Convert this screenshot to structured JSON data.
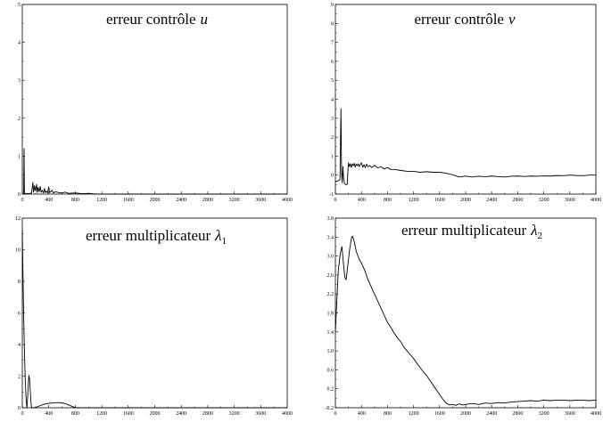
{
  "chart_data": [
    {
      "type": "line",
      "title": {
        "text": "erreur contrôle",
        "var": "u"
      },
      "xlim": [
        0,
        4000
      ],
      "ylim": [
        0,
        5
      ],
      "xticks": [
        "0",
        "400",
        "800",
        "1200",
        "1600",
        "2000",
        "2400",
        "2800",
        "3200",
        "3600",
        "4000"
      ],
      "yticks": [
        "0",
        "1",
        "2",
        "3",
        "4",
        "5"
      ],
      "grid": false,
      "series": [
        {
          "color": "#000000",
          "points": [
            [
              0,
              0
            ],
            [
              20,
              0
            ],
            [
              27,
              1.2
            ],
            [
              32,
              0
            ],
            [
              60,
              0.02
            ],
            [
              100,
              0.01
            ],
            [
              140,
              0.03
            ],
            [
              160,
              0.31
            ],
            [
              170,
              0.05
            ],
            [
              185,
              0.22
            ],
            [
              200,
              0.08
            ],
            [
              215,
              0.26
            ],
            [
              225,
              0.04
            ],
            [
              240,
              0.18
            ],
            [
              255,
              0.06
            ],
            [
              270,
              0.2
            ],
            [
              285,
              0.05
            ],
            [
              300,
              0.1
            ],
            [
              320,
              0.03
            ],
            [
              335,
              0.15
            ],
            [
              345,
              0.04
            ],
            [
              360,
              0.08
            ],
            [
              380,
              0.03
            ],
            [
              400,
              0.19
            ],
            [
              410,
              0.04
            ],
            [
              430,
              0.06
            ],
            [
              450,
              0.1
            ],
            [
              470,
              0.03
            ],
            [
              500,
              0.06
            ],
            [
              550,
              0.04
            ],
            [
              600,
              0.03
            ],
            [
              650,
              0.05
            ],
            [
              700,
              0.02
            ],
            [
              800,
              0.03
            ],
            [
              900,
              0.01
            ],
            [
              1000,
              0.02
            ],
            [
              1100,
              0
            ],
            [
              4000,
              0
            ]
          ]
        }
      ]
    },
    {
      "type": "line",
      "title": {
        "text": "erreur contrôle",
        "var": "v"
      },
      "xlim": [
        0,
        4000
      ],
      "ylim": [
        -1,
        9
      ],
      "xticks": [
        "0",
        "400",
        "800",
        "1200",
        "1600",
        "2000",
        "2400",
        "2800",
        "3200",
        "3600",
        "4000"
      ],
      "yticks": [
        "-1",
        "0",
        "1",
        "2",
        "3",
        "4",
        "5",
        "6",
        "7",
        "8",
        "9"
      ],
      "grid": false,
      "series": [
        {
          "color": "#000000",
          "points": [
            [
              0,
              -0.35
            ],
            [
              40,
              -0.3
            ],
            [
              70,
              -0.25
            ],
            [
              85,
              3.5
            ],
            [
              95,
              0.1
            ],
            [
              105,
              -0.4
            ],
            [
              115,
              0.45
            ],
            [
              125,
              -0.1
            ],
            [
              140,
              -0.45
            ],
            [
              160,
              -0.5
            ],
            [
              180,
              -0.5
            ],
            [
              200,
              0.65
            ],
            [
              215,
              0.45
            ],
            [
              230,
              0.6
            ],
            [
              245,
              0.4
            ],
            [
              260,
              0.6
            ],
            [
              275,
              0.5
            ],
            [
              290,
              0.62
            ],
            [
              305,
              0.42
            ],
            [
              320,
              0.58
            ],
            [
              335,
              0.5
            ],
            [
              350,
              0.6
            ],
            [
              365,
              0.45
            ],
            [
              380,
              0.55
            ],
            [
              400,
              0.65
            ],
            [
              420,
              0.42
            ],
            [
              440,
              0.55
            ],
            [
              460,
              0.4
            ],
            [
              480,
              0.58
            ],
            [
              500,
              0.45
            ],
            [
              530,
              0.5
            ],
            [
              560,
              0.4
            ],
            [
              600,
              0.52
            ],
            [
              650,
              0.38
            ],
            [
              700,
              0.45
            ],
            [
              750,
              0.32
            ],
            [
              800,
              0.4
            ],
            [
              850,
              0.3
            ],
            [
              900,
              0.3
            ],
            [
              1000,
              0.25
            ],
            [
              1100,
              0.2
            ],
            [
              1200,
              0.2
            ],
            [
              1300,
              0.15
            ],
            [
              1400,
              0.18
            ],
            [
              1500,
              0.15
            ],
            [
              1600,
              0.15
            ],
            [
              1700,
              0.1
            ],
            [
              1800,
              0.02
            ],
            [
              1900,
              -0.1
            ],
            [
              2000,
              -0.05
            ],
            [
              2100,
              -0.1
            ],
            [
              2200,
              -0.06
            ],
            [
              2300,
              -0.08
            ],
            [
              2400,
              -0.05
            ],
            [
              2500,
              -0.08
            ],
            [
              2600,
              -0.1
            ],
            [
              2700,
              -0.06
            ],
            [
              2800,
              -0.05
            ],
            [
              2900,
              -0.07
            ],
            [
              3000,
              -0.05
            ],
            [
              3100,
              -0.06
            ],
            [
              3200,
              -0.04
            ],
            [
              3300,
              -0.05
            ],
            [
              3400,
              -0.02
            ],
            [
              3500,
              -0.03
            ],
            [
              3600,
              0
            ],
            [
              3700,
              -0.02
            ],
            [
              3800,
              -0.03
            ],
            [
              3900,
              0
            ],
            [
              4000,
              0
            ]
          ]
        }
      ]
    },
    {
      "type": "line",
      "title": {
        "text": "erreur multiplicateur",
        "var": "λ",
        "sub": "1"
      },
      "xlim": [
        0,
        4000
      ],
      "ylim": [
        0,
        12
      ],
      "xticks": [
        "0",
        "400",
        "800",
        "1200",
        "1600",
        "2000",
        "2400",
        "2800",
        "3200",
        "3600",
        "4000"
      ],
      "yticks": [
        "0",
        "2",
        "4",
        "6",
        "8",
        "10",
        "12"
      ],
      "grid": false,
      "series": [
        {
          "color": "#000000",
          "points": [
            [
              0,
              11.2
            ],
            [
              10,
              8.5
            ],
            [
              20,
              6
            ],
            [
              30,
              4
            ],
            [
              40,
              2.4
            ],
            [
              50,
              1.2
            ],
            [
              60,
              0.4
            ],
            [
              70,
              0
            ],
            [
              80,
              0.6
            ],
            [
              90,
              1.5
            ],
            [
              100,
              2.05
            ],
            [
              110,
              1.8
            ],
            [
              120,
              1.1
            ],
            [
              130,
              0.4
            ],
            [
              140,
              0
            ],
            [
              180,
              0
            ],
            [
              220,
              0.05
            ],
            [
              260,
              0.12
            ],
            [
              300,
              0.18
            ],
            [
              350,
              0.24
            ],
            [
              400,
              0.28
            ],
            [
              450,
              0.3
            ],
            [
              500,
              0.32
            ],
            [
              550,
              0.33
            ],
            [
              600,
              0.31
            ],
            [
              650,
              0.26
            ],
            [
              700,
              0.18
            ],
            [
              750,
              0.09
            ],
            [
              800,
              0.02
            ],
            [
              850,
              0
            ],
            [
              4000,
              0
            ]
          ]
        }
      ]
    },
    {
      "type": "line",
      "title": {
        "text": "erreur multiplicateur",
        "var": "λ",
        "sub": "2"
      },
      "xlim": [
        0,
        4000
      ],
      "ylim": [
        -0.2,
        3.8
      ],
      "xticks": [
        "0",
        "400",
        "800",
        "1200",
        "1600",
        "2000",
        "2400",
        "2800",
        "3200",
        "3600",
        "4000"
      ],
      "yticks": [
        "-0.2",
        "0.2",
        "0.6",
        "1.0",
        "1.4",
        "1.8",
        "2.2",
        "2.6",
        "3.0",
        "3.4",
        "3.8"
      ],
      "grid": false,
      "series": [
        {
          "color": "#000000",
          "points": [
            [
              0,
              1.4
            ],
            [
              20,
              2.0
            ],
            [
              45,
              2.7
            ],
            [
              75,
              3.05
            ],
            [
              100,
              3.2
            ],
            [
              120,
              2.9
            ],
            [
              145,
              2.55
            ],
            [
              165,
              2.5
            ],
            [
              190,
              2.8
            ],
            [
              220,
              3.15
            ],
            [
              250,
              3.4
            ],
            [
              265,
              3.42
            ],
            [
              290,
              3.3
            ],
            [
              320,
              3.1
            ],
            [
              360,
              2.95
            ],
            [
              400,
              2.85
            ],
            [
              450,
              2.7
            ],
            [
              500,
              2.5
            ],
            [
              550,
              2.35
            ],
            [
              600,
              2.2
            ],
            [
              650,
              2.05
            ],
            [
              700,
              1.9
            ],
            [
              750,
              1.75
            ],
            [
              800,
              1.6
            ],
            [
              850,
              1.5
            ],
            [
              900,
              1.38
            ],
            [
              950,
              1.28
            ],
            [
              1000,
              1.2
            ],
            [
              1050,
              1.08
            ],
            [
              1100,
              1.0
            ],
            [
              1150,
              0.92
            ],
            [
              1200,
              0.84
            ],
            [
              1250,
              0.74
            ],
            [
              1300,
              0.65
            ],
            [
              1350,
              0.56
            ],
            [
              1400,
              0.48
            ],
            [
              1450,
              0.38
            ],
            [
              1500,
              0.28
            ],
            [
              1550,
              0.18
            ],
            [
              1600,
              0.08
            ],
            [
              1650,
              -0.02
            ],
            [
              1700,
              -0.1
            ],
            [
              1750,
              -0.14
            ],
            [
              1800,
              -0.13
            ],
            [
              1850,
              -0.15
            ],
            [
              1900,
              -0.12
            ],
            [
              1950,
              -0.14
            ],
            [
              2000,
              -0.13
            ],
            [
              2100,
              -0.11
            ],
            [
              2200,
              -0.13
            ],
            [
              2300,
              -0.1
            ],
            [
              2400,
              -0.11
            ],
            [
              2500,
              -0.09
            ],
            [
              2600,
              -0.1
            ],
            [
              2700,
              -0.08
            ],
            [
              2800,
              -0.07
            ],
            [
              2900,
              -0.06
            ],
            [
              3000,
              -0.05
            ],
            [
              3100,
              -0.06
            ],
            [
              3200,
              -0.04
            ],
            [
              3300,
              -0.05
            ],
            [
              3400,
              -0.04
            ],
            [
              3500,
              -0.04
            ],
            [
              3600,
              -0.05
            ],
            [
              3700,
              -0.04
            ],
            [
              3800,
              -0.04
            ],
            [
              3900,
              -0.05
            ],
            [
              4000,
              -0.04
            ]
          ]
        }
      ]
    }
  ]
}
